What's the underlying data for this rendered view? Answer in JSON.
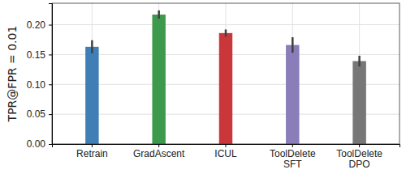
{
  "chart_data": {
    "type": "bar",
    "y_label": "TPR@FPR = 0.01",
    "categories": [
      "Retrain",
      "GradAscent",
      "ICUL",
      "ToolDelete\nSFT",
      "ToolDelete\nDPO"
    ],
    "values": [
      0.163,
      0.217,
      0.186,
      0.166,
      0.139
    ],
    "errors": [
      0.011,
      0.007,
      0.006,
      0.013,
      0.009
    ],
    "colors": [
      "#3f7fb5",
      "#3d9a4c",
      "#c9373b",
      "#8b7db9",
      "#777777"
    ],
    "ylim": [
      0,
      0.236
    ],
    "yticks": [
      {
        "value": 0,
        "label": "0.00"
      },
      {
        "value": 0.05,
        "label": "0.05"
      },
      {
        "value": 0.1,
        "label": "0.10"
      },
      {
        "value": 0.15,
        "label": "0.15"
      },
      {
        "value": 0.2,
        "label": "0.20"
      }
    ],
    "grid": true
  }
}
